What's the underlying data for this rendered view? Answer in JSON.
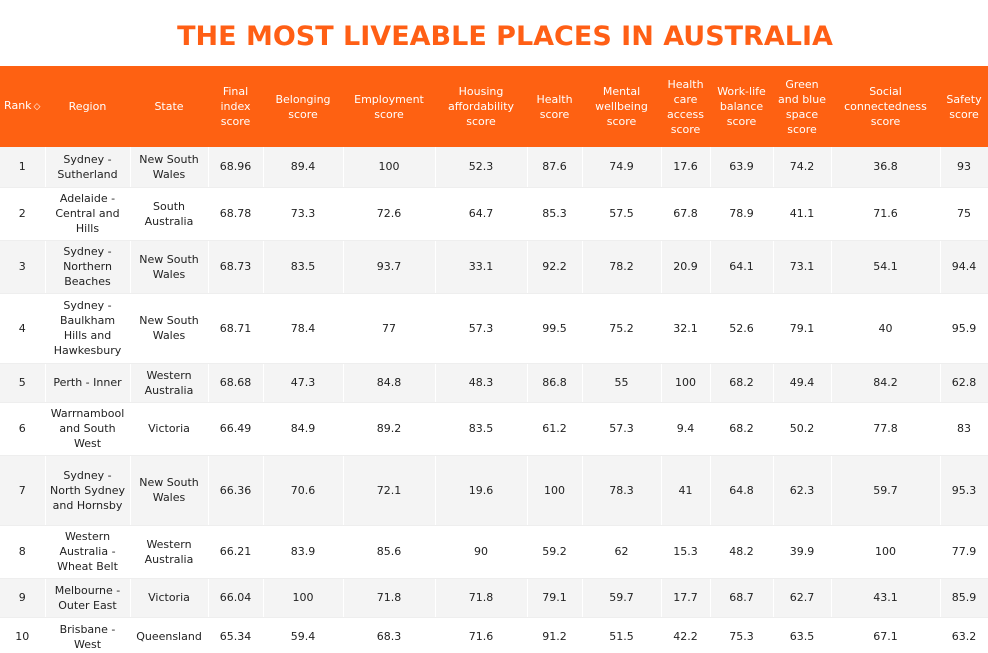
{
  "title": "THE MOST LIVEABLE PLACES IN AUSTRALIA",
  "accent_color": "#fe6112",
  "columns": [
    "Rank",
    "Region",
    "State",
    "Final index score",
    "Belonging score",
    "Employment score",
    "Housing affordability score",
    "Health score",
    "Mental wellbeing score",
    "Health care access score",
    "Work-life balance score",
    "Green and blue space score",
    "Social connectedness score",
    "Safety score"
  ],
  "sort_icon": "sort-toggle-icon",
  "rows": [
    [
      "1",
      "Sydney - Sutherland",
      "New South Wales",
      "68.96",
      "89.4",
      "100",
      "52.3",
      "87.6",
      "74.9",
      "17.6",
      "63.9",
      "74.2",
      "36.8",
      "93"
    ],
    [
      "2",
      "Adelaide - Central and Hills",
      "South Australia",
      "68.78",
      "73.3",
      "72.6",
      "64.7",
      "85.3",
      "57.5",
      "67.8",
      "78.9",
      "41.1",
      "71.6",
      "75"
    ],
    [
      "3",
      "Sydney - Northern Beaches",
      "New South Wales",
      "68.73",
      "83.5",
      "93.7",
      "33.1",
      "92.2",
      "78.2",
      "20.9",
      "64.1",
      "73.1",
      "54.1",
      "94.4"
    ],
    [
      "4",
      "Sydney - Baulkham Hills and Hawkesbury",
      "New South Wales",
      "68.71",
      "78.4",
      "77",
      "57.3",
      "99.5",
      "75.2",
      "32.1",
      "52.6",
      "79.1",
      "40",
      "95.9"
    ],
    [
      "5",
      "Perth - Inner",
      "Western Australia",
      "68.68",
      "47.3",
      "84.8",
      "48.3",
      "86.8",
      "55",
      "100",
      "68.2",
      "49.4",
      "84.2",
      "62.8"
    ],
    [
      "6",
      "Warrnambool and South West",
      "Victoria",
      "66.49",
      "84.9",
      "89.2",
      "83.5",
      "61.2",
      "57.3",
      "9.4",
      "68.2",
      "50.2",
      "77.8",
      "83"
    ],
    [
      "7",
      "Sydney - North Sydney and Hornsby",
      "New South Wales",
      "66.36",
      "70.6",
      "72.1",
      "19.6",
      "100",
      "78.3",
      "41",
      "64.8",
      "62.3",
      "59.7",
      "95.3"
    ],
    [
      "8",
      "Western Australia - Wheat Belt",
      "Western Australia",
      "66.21",
      "83.9",
      "85.6",
      "90",
      "59.2",
      "62",
      "15.3",
      "48.2",
      "39.9",
      "100",
      "77.9"
    ],
    [
      "9",
      "Melbourne - Outer East",
      "Victoria",
      "66.04",
      "100",
      "71.8",
      "71.8",
      "79.1",
      "59.7",
      "17.7",
      "68.7",
      "62.7",
      "43.1",
      "85.9"
    ],
    [
      "10",
      "Brisbane - West",
      "Queensland",
      "65.34",
      "59.4",
      "68.3",
      "71.6",
      "91.2",
      "51.5",
      "42.2",
      "75.3",
      "63.5",
      "67.1",
      "63.2"
    ]
  ]
}
